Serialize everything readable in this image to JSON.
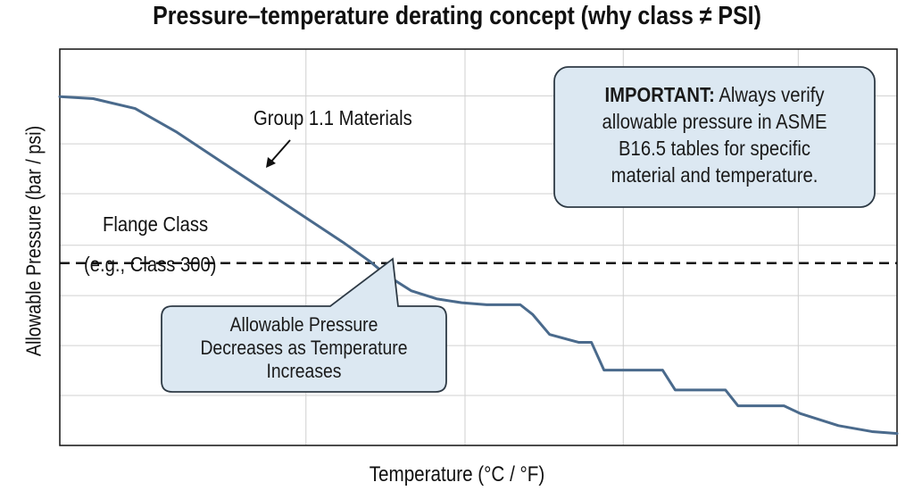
{
  "chart_data": {
    "type": "line",
    "title": "Pressure–temperature derating concept (why class ≠ PSI)",
    "xlabel": "Temperature (°C / °F)",
    "ylabel": "Allowable Pressure (bar / psi)",
    "xlim": [
      0,
      100
    ],
    "ylim": [
      0,
      100
    ],
    "grid": true,
    "tick_labels": "none",
    "series": [
      {
        "name": "Group 1.1 Materials",
        "color": "#4a6a8c",
        "x": [
          0,
          4,
          9,
          14,
          19,
          24,
          29,
          34,
          37,
          39,
          42,
          45,
          48,
          51,
          55,
          56.5,
          58.5,
          62,
          63.5,
          65,
          72,
          73.5,
          79.5,
          81,
          86.5,
          88.5,
          93,
          97,
          100
        ],
        "y": [
          88,
          87.5,
          85,
          79,
          72,
          65,
          58,
          51,
          46.5,
          43,
          39,
          37,
          36,
          35.5,
          35.5,
          33,
          28,
          26,
          26,
          19,
          19,
          14,
          14,
          10,
          10,
          8,
          5,
          3.5,
          3
        ]
      }
    ],
    "reference_line": {
      "name": "Flange Class",
      "y": 46,
      "style": "dashed",
      "color": "#111111"
    },
    "annotations": {
      "material_label": "Group 1.1 Materials",
      "flange_class": "Flange Class",
      "flange_example": "(e.g., Class 300)",
      "callout_lines": [
        "Allowable Pressure",
        "Decreases as Temperature",
        "Increases"
      ],
      "important_bold": "IMPORTANT:",
      "important_lines": [
        "Always verify",
        "allowable pressure in ASME",
        "B16.5 tables for specific",
        "material and temperature."
      ]
    }
  },
  "colors": {
    "curve": "#4a6a8c",
    "callout_fill": "#dce8f2",
    "callout_stroke": "#2e3a45",
    "grid": "#d0d0d0"
  }
}
